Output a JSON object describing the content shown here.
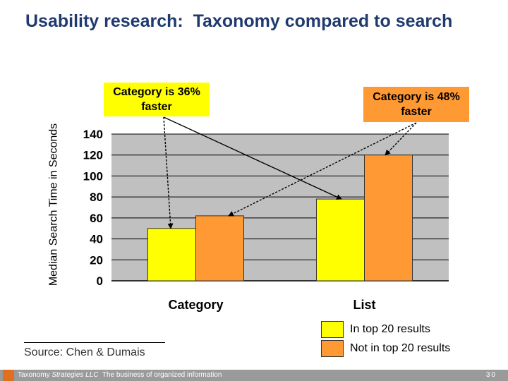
{
  "slide": {
    "title": "Usability research:  Taxonomy compared to search",
    "callouts": [
      {
        "text": "Category is 36% faster",
        "color": "#ffff00"
      },
      {
        "text": "Category is 48% faster",
        "color": "#ff9933"
      }
    ],
    "source": "Source: Chen & Dumais",
    "footer": {
      "company": "Taxonomy",
      "company_italic": "Strategies LLC",
      "tagline": "The business of organized information",
      "page": "30"
    }
  },
  "chart_data": {
    "type": "bar",
    "title": "",
    "xlabel": "",
    "ylabel": "Median Search Time in Seconds",
    "categories": [
      "Category",
      "List"
    ],
    "series": [
      {
        "name": "In top 20 results",
        "values": [
          50,
          78
        ],
        "color": "#ffff00"
      },
      {
        "name": "Not in top 20 results",
        "values": [
          62,
          120
        ],
        "color": "#ff9933"
      }
    ],
    "ylim": [
      0,
      140
    ],
    "yticks": [
      0,
      20,
      40,
      60,
      80,
      100,
      120,
      140
    ],
    "grid": true,
    "plot_background": "#c0c0c0",
    "legend": "bottom-right"
  }
}
